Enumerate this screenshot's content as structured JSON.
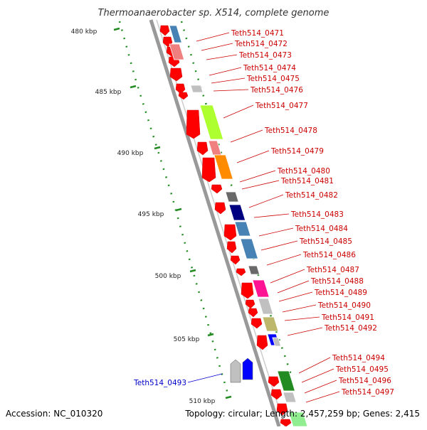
{
  "title": "Thermoanaerobacter sp. X514, complete genome",
  "footer": {
    "accession": "Accession: NC_010320",
    "summary": "Topology: circular; Length: 2,457,259 bp; Genes: 2,415"
  },
  "colors": {
    "axis": "#999999",
    "tick": "#228b22",
    "gene_forward": "#ff0000",
    "label_red": "#cc0000",
    "label_blue": "#0000cc"
  },
  "scale_labels": [
    "480 kbp",
    "485 kbp",
    "490 kbp",
    "495 kbp",
    "500 kbp",
    "505 kbp",
    "510 kbp"
  ],
  "genes_right": [
    "Teth514_0471",
    "Teth514_0472",
    "Teth514_0473",
    "Teth514_0474",
    "Teth514_0475",
    "Teth514_0476",
    "Teth514_0477",
    "Teth514_0478",
    "Teth514_0479",
    "Teth514_0480",
    "Teth514_0481",
    "Teth514_0482",
    "Teth514_0483",
    "Teth514_0484",
    "Teth514_0485",
    "Teth514_0486",
    "Teth514_0487",
    "Teth514_0488",
    "Teth514_0489",
    "Teth514_0490",
    "Teth514_0491",
    "Teth514_0492",
    "Teth514_0494",
    "Teth514_0495",
    "Teth514_0496",
    "Teth514_0497"
  ],
  "genes_left": [
    "Teth514_0493"
  ],
  "cog_colors": [
    "#4682b4",
    "#f08080",
    "#adff2f",
    "#ff8c00",
    "#696969",
    "#000080",
    "#ff1493",
    "#bdb76b",
    "#0000ff",
    "#228b22",
    "#c0c0c0",
    "#90ee90"
  ]
}
